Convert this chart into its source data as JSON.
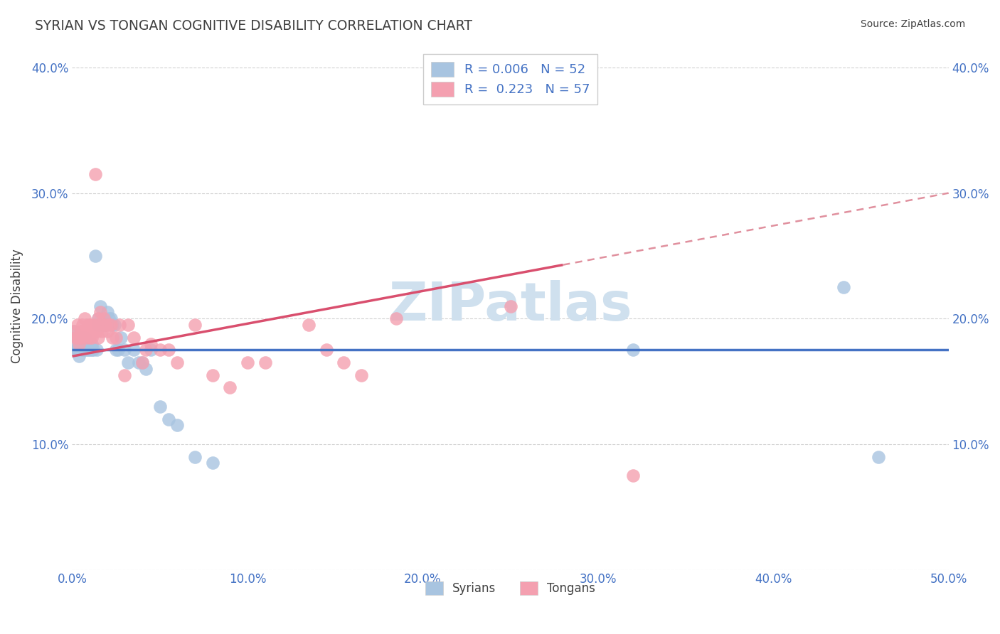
{
  "title": "SYRIAN VS TONGAN COGNITIVE DISABILITY CORRELATION CHART",
  "source": "Source: ZipAtlas.com",
  "ylabel": "Cognitive Disability",
  "xlim": [
    0.0,
    0.5
  ],
  "ylim": [
    0.0,
    0.42
  ],
  "xticks": [
    0.0,
    0.1,
    0.2,
    0.3,
    0.4,
    0.5
  ],
  "yticks": [
    0.0,
    0.1,
    0.2,
    0.3,
    0.4
  ],
  "xticklabels": [
    "0.0%",
    "10.0%",
    "20.0%",
    "30.0%",
    "40.0%",
    "50.0%"
  ],
  "yticklabels": [
    "",
    "10.0%",
    "20.0%",
    "30.0%",
    "40.0%"
  ],
  "legend_r_syrian": "0.006",
  "legend_n_syrian": "52",
  "legend_r_tongan": "0.223",
  "legend_n_tongan": "57",
  "syrian_color": "#a8c4e0",
  "tongan_color": "#f4a0b0",
  "syrian_line_color": "#4472c4",
  "tongan_line_color": "#d94f6e",
  "tongan_line_dashed_color": "#e0909e",
  "watermark": "ZIPatlas",
  "watermark_color": "#cfe0ee",
  "background_color": "#ffffff",
  "grid_color": "#cccccc",
  "title_color": "#404040",
  "tick_color": "#4472c4",
  "syrian_line_y": [
    0.175,
    0.175
  ],
  "tongan_line_y": [
    0.17,
    0.3
  ],
  "syrians_x": [
    0.001,
    0.002,
    0.002,
    0.003,
    0.003,
    0.004,
    0.004,
    0.005,
    0.005,
    0.006,
    0.006,
    0.007,
    0.007,
    0.008,
    0.008,
    0.009,
    0.01,
    0.01,
    0.011,
    0.011,
    0.012,
    0.013,
    0.014,
    0.015,
    0.015,
    0.016,
    0.017,
    0.018,
    0.019,
    0.02,
    0.021,
    0.022,
    0.023,
    0.024,
    0.025,
    0.026,
    0.028,
    0.03,
    0.032,
    0.035,
    0.038,
    0.04,
    0.042,
    0.045,
    0.05,
    0.055,
    0.06,
    0.07,
    0.08,
    0.32,
    0.44,
    0.46
  ],
  "syrians_y": [
    0.19,
    0.18,
    0.175,
    0.175,
    0.185,
    0.17,
    0.18,
    0.175,
    0.185,
    0.175,
    0.18,
    0.185,
    0.175,
    0.18,
    0.175,
    0.175,
    0.175,
    0.18,
    0.18,
    0.175,
    0.175,
    0.25,
    0.175,
    0.2,
    0.195,
    0.21,
    0.195,
    0.195,
    0.195,
    0.205,
    0.2,
    0.2,
    0.195,
    0.195,
    0.175,
    0.175,
    0.185,
    0.175,
    0.165,
    0.175,
    0.165,
    0.165,
    0.16,
    0.175,
    0.13,
    0.12,
    0.115,
    0.09,
    0.085,
    0.175,
    0.225,
    0.09
  ],
  "tongans_x": [
    0.001,
    0.002,
    0.003,
    0.003,
    0.004,
    0.004,
    0.005,
    0.005,
    0.006,
    0.006,
    0.007,
    0.007,
    0.008,
    0.008,
    0.009,
    0.009,
    0.01,
    0.01,
    0.011,
    0.011,
    0.012,
    0.013,
    0.014,
    0.014,
    0.015,
    0.015,
    0.016,
    0.017,
    0.018,
    0.019,
    0.02,
    0.021,
    0.022,
    0.023,
    0.025,
    0.027,
    0.03,
    0.032,
    0.035,
    0.04,
    0.042,
    0.045,
    0.05,
    0.055,
    0.06,
    0.07,
    0.08,
    0.09,
    0.1,
    0.11,
    0.135,
    0.145,
    0.155,
    0.165,
    0.185,
    0.25,
    0.32
  ],
  "tongans_y": [
    0.19,
    0.185,
    0.185,
    0.195,
    0.185,
    0.18,
    0.19,
    0.185,
    0.195,
    0.19,
    0.19,
    0.2,
    0.185,
    0.19,
    0.19,
    0.195,
    0.195,
    0.185,
    0.19,
    0.185,
    0.195,
    0.315,
    0.19,
    0.195,
    0.2,
    0.185,
    0.205,
    0.19,
    0.2,
    0.195,
    0.19,
    0.195,
    0.195,
    0.185,
    0.185,
    0.195,
    0.155,
    0.195,
    0.185,
    0.165,
    0.175,
    0.18,
    0.175,
    0.175,
    0.165,
    0.195,
    0.155,
    0.145,
    0.165,
    0.165,
    0.195,
    0.175,
    0.165,
    0.155,
    0.2,
    0.21,
    0.075
  ]
}
